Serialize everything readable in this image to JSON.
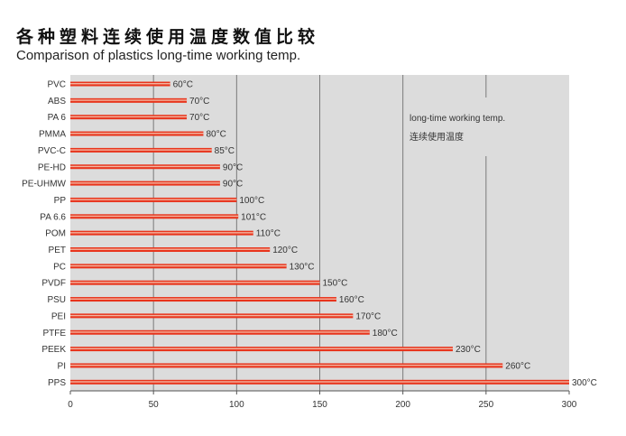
{
  "title_cn": "各种塑料连续使用温度数值比较",
  "title_en": "Comparison of plastics long-time working temp.",
  "chart_data": {
    "type": "bar",
    "orientation": "horizontal",
    "categories": [
      "PVC",
      "ABS",
      "PA 6",
      "PMMA",
      "PVC-C",
      "PE-HD",
      "PE-UHMW",
      "PP",
      "PA 6.6",
      "POM",
      "PET",
      "PC",
      "PVDF",
      "PSU",
      "PEI",
      "PTFE",
      "PEEK",
      "PI",
      "PPS"
    ],
    "values": [
      60,
      70,
      70,
      80,
      85,
      90,
      90,
      100,
      101,
      110,
      120,
      130,
      150,
      160,
      170,
      180,
      230,
      260,
      300
    ],
    "value_labels": [
      "60°C",
      "70°C",
      "70°C",
      "80°C",
      "85°C",
      "90°C",
      "90°C",
      "100°C",
      "101°C",
      "110°C",
      "120°C",
      "130°C",
      "150°C",
      "160°C",
      "170°C",
      "180°C",
      "230°C",
      "260°C",
      "300°C"
    ],
    "xlim": [
      0,
      300
    ],
    "xticks": [
      "0",
      "50",
      "100",
      "150",
      "200",
      "250",
      "300"
    ],
    "annotation_en": "long-time working temp.",
    "annotation_cn": "连续使用温度",
    "bar_color": "#e8341c",
    "highlight_color": "#f2b6a2",
    "background_color": "#dcdcdc",
    "grid": true
  }
}
